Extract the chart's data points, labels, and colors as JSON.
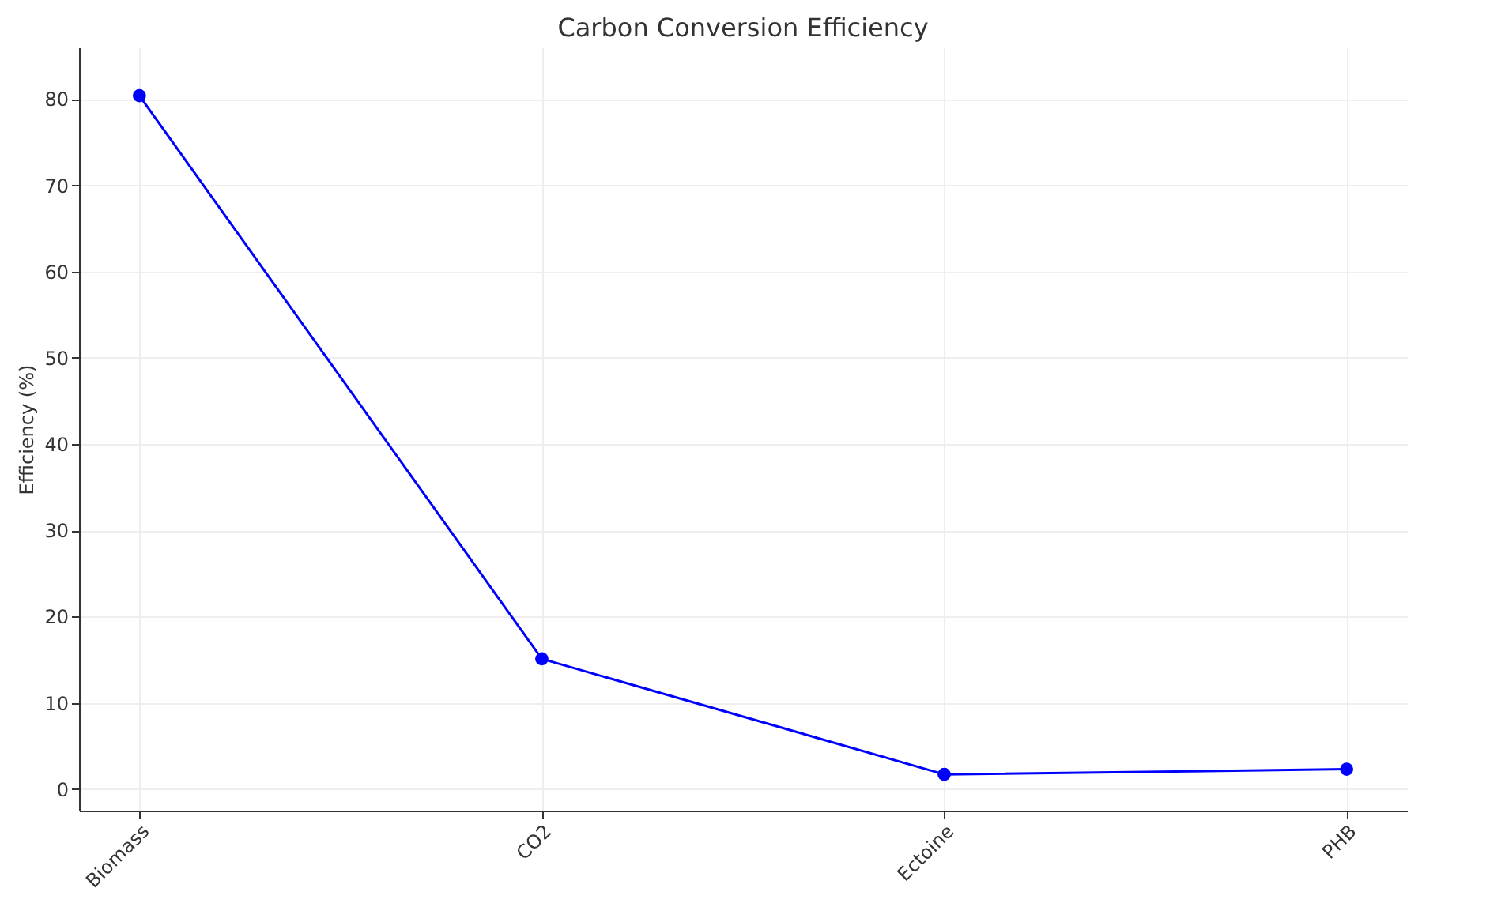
{
  "chart_data": {
    "type": "line",
    "title": "Carbon Conversion Efficiency",
    "ylabel": "Efficiency (%)",
    "categories": [
      "Biomass",
      "CO2",
      "Ectoine",
      "PHB"
    ],
    "series": [
      {
        "color": "#0000ff",
        "values": [
          80.4,
          15.1,
          1.7,
          2.3
        ]
      }
    ],
    "ylim": [
      -2.5,
      86
    ],
    "yticks": [
      0,
      10,
      20,
      30,
      40,
      50,
      60,
      70,
      80
    ],
    "grid": true,
    "marker": "circle",
    "line_style": "solid"
  }
}
